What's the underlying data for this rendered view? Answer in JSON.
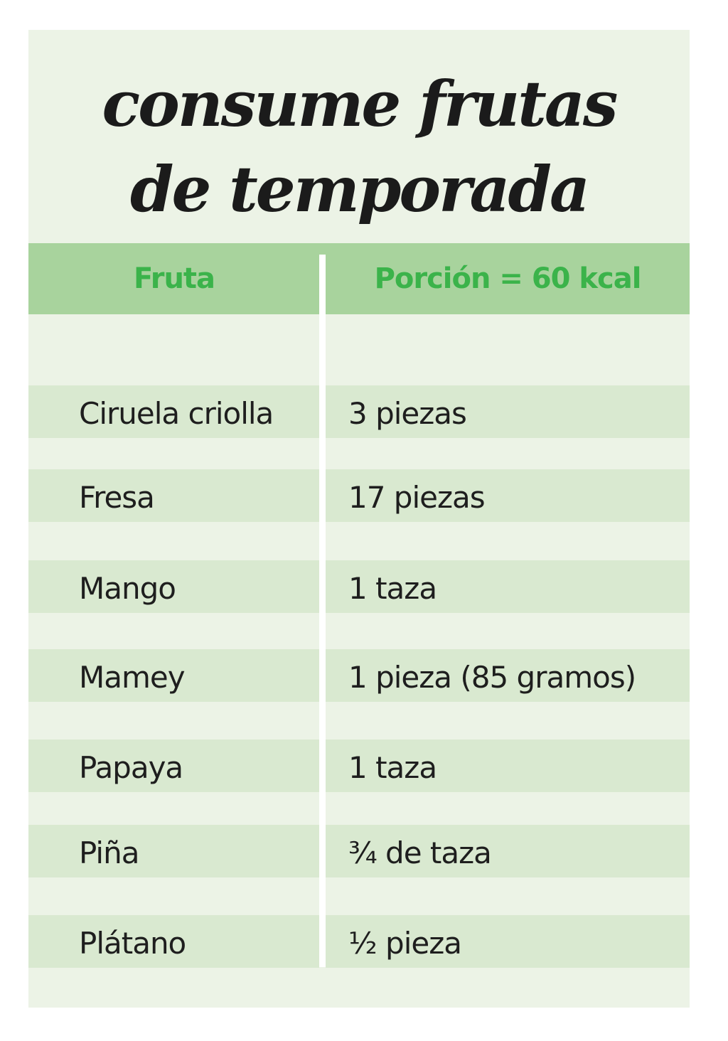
{
  "title": {
    "line1": "consume frutas",
    "line2": "de temporada"
  },
  "table": {
    "headers": [
      "Fruta",
      "Porción = 60 kcal"
    ],
    "rows": [
      {
        "fruit": "Ciruela criolla",
        "portion": "3 piezas"
      },
      {
        "fruit": "Fresa",
        "portion": "17 piezas"
      },
      {
        "fruit": "Mango",
        "portion": "1 taza"
      },
      {
        "fruit": "Mamey",
        "portion": "1 pieza (85 gramos)"
      },
      {
        "fruit": "Papaya",
        "portion": "1 taza"
      },
      {
        "fruit": "Piña",
        "portion": "¾ de taza"
      },
      {
        "fruit": "Plátano",
        "portion": "½ pieza"
      }
    ]
  },
  "colors": {
    "background": "#ecf3e6",
    "header_background": "#a8d39d",
    "header_text": "#3bb34a",
    "row_band": "#d9e9d0",
    "text": "#1e1e1e"
  }
}
